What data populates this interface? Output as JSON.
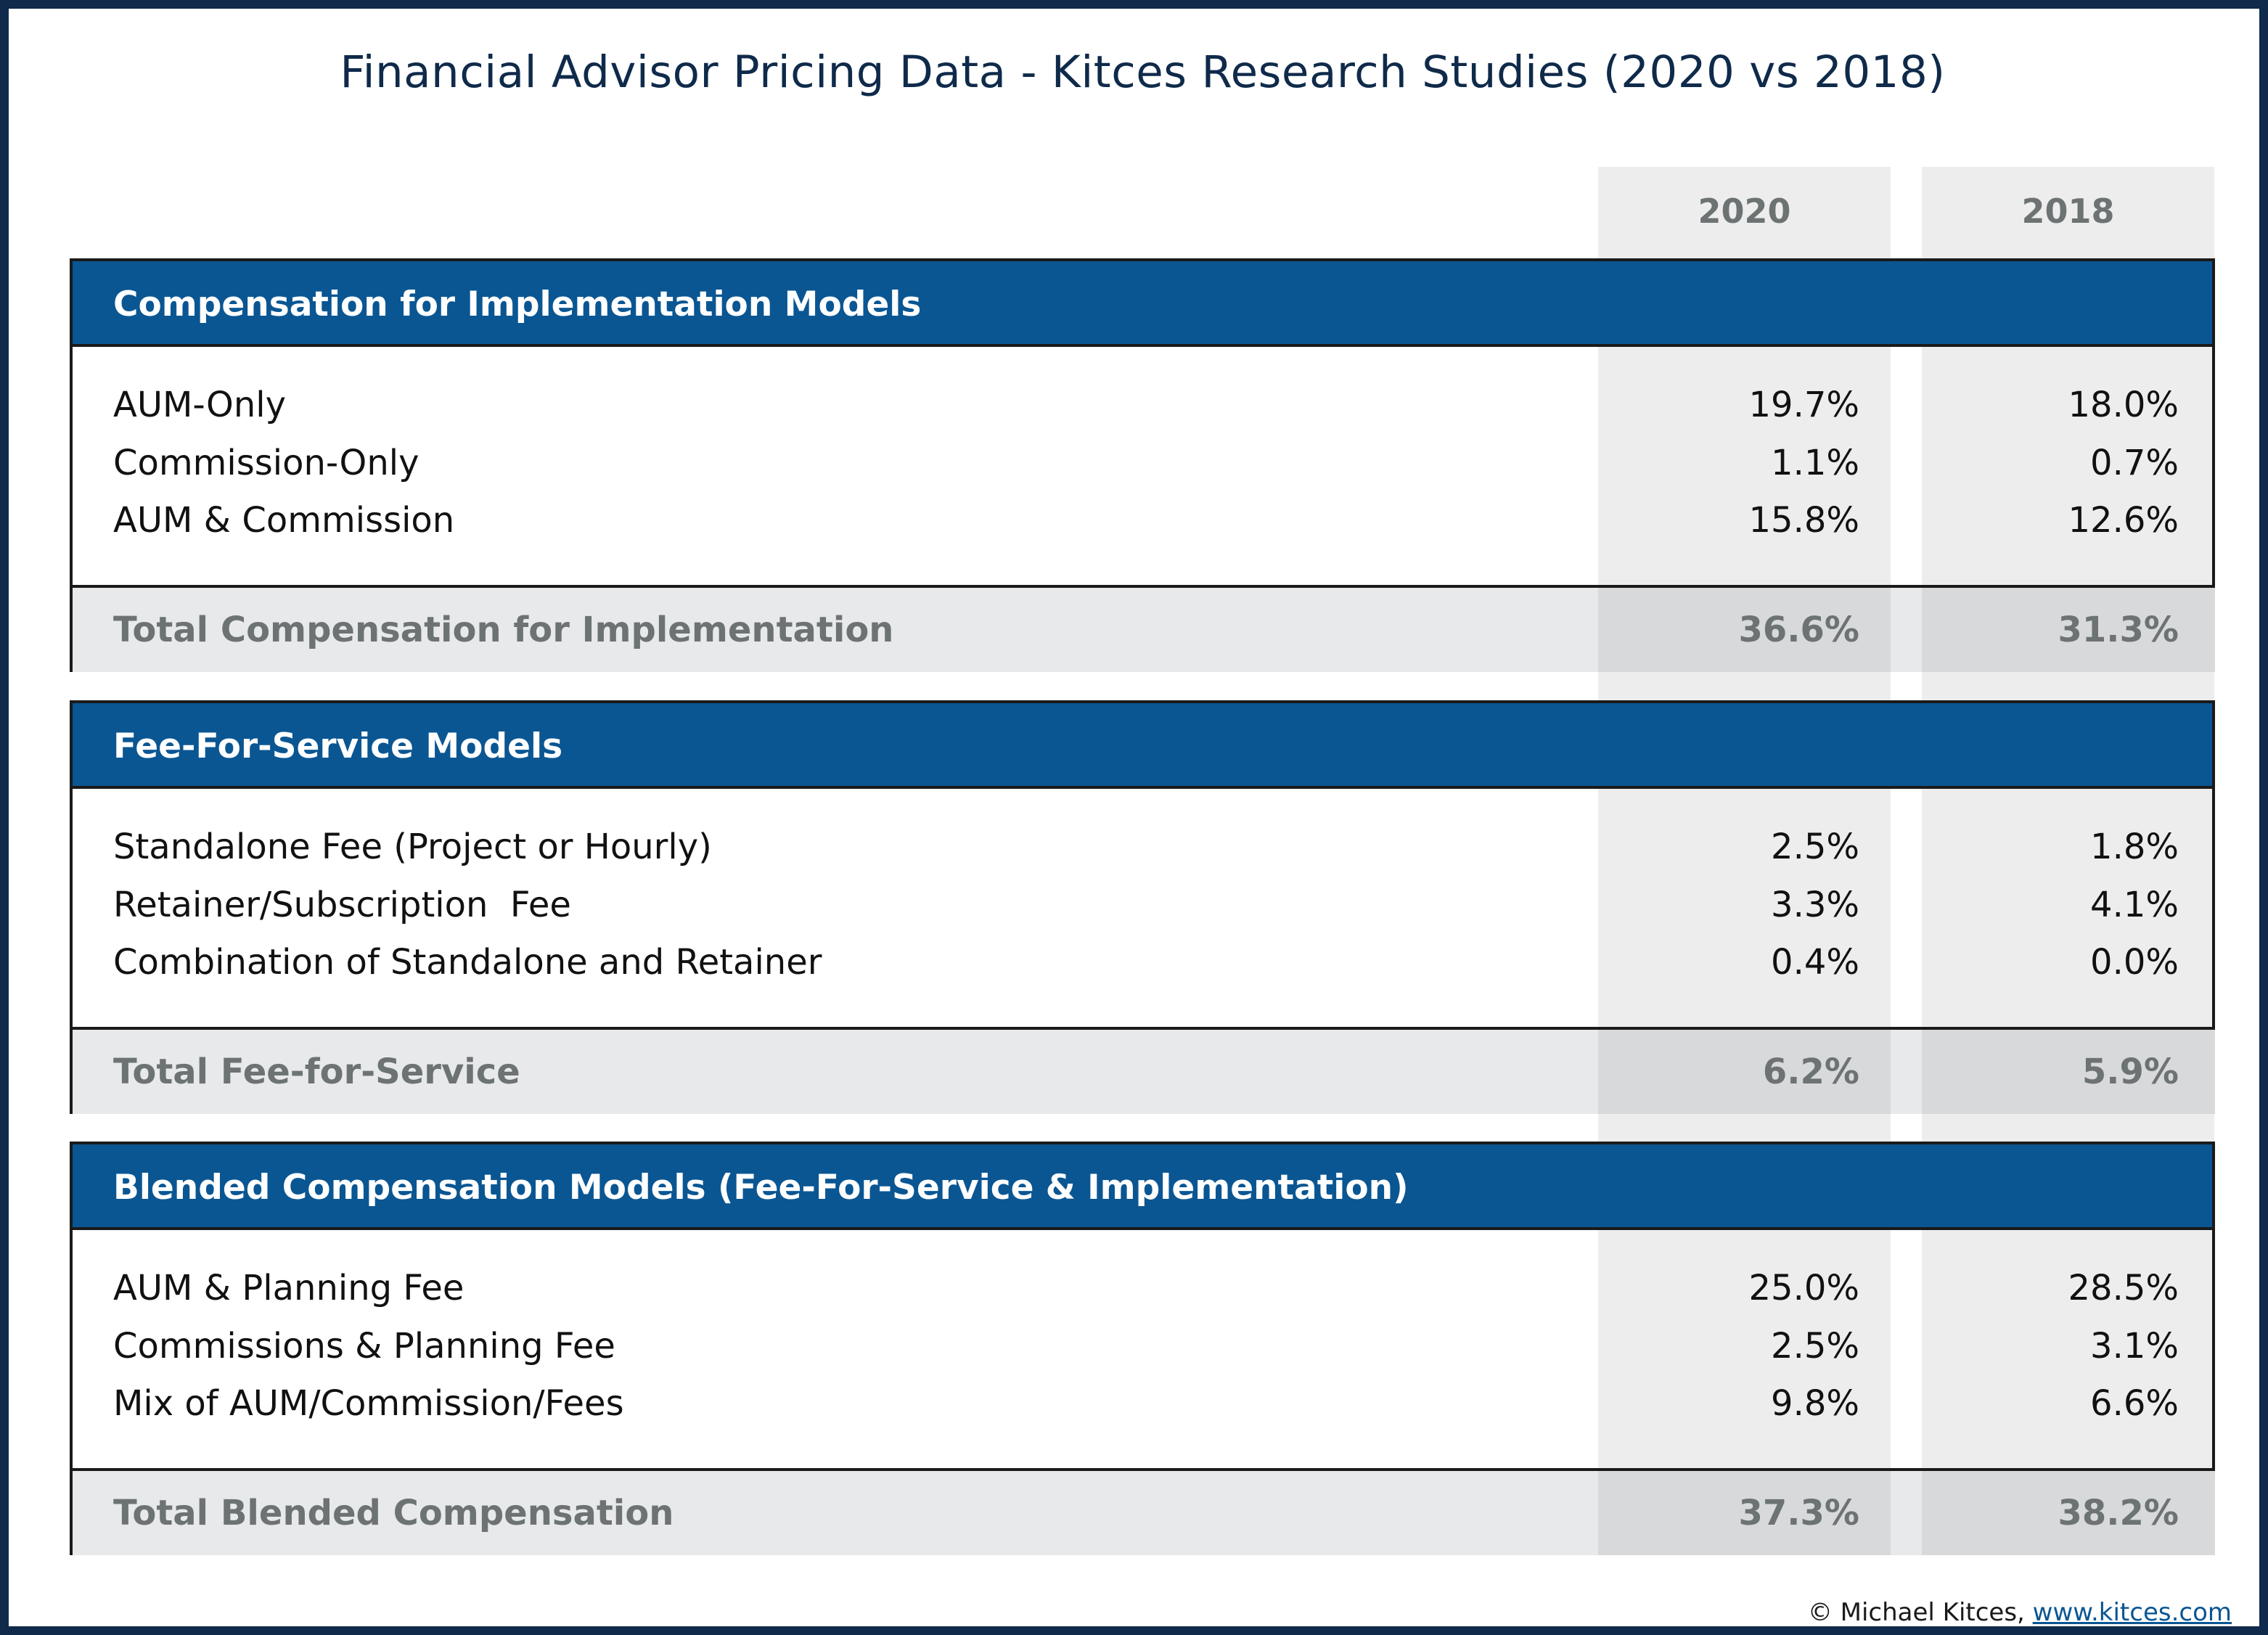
{
  "title": "Financial Advisor Pricing Data - Kitces Research Studies (2020 vs 2018)",
  "columns": [
    "2020",
    "2018"
  ],
  "credit": {
    "text": "© Michael Kitces, ",
    "link": "www.kitces.com"
  },
  "colors": {
    "header_blue": "#0a5693",
    "title_navy": "#0f2a4a",
    "total_text_gray": "#6d7373",
    "column_shade": "#ededee"
  },
  "sections": [
    {
      "header": "Compensation for Implementation Models",
      "rows": [
        {
          "label": "AUM-Only",
          "v2020": "19.7%",
          "v2018": "18.0%"
        },
        {
          "label": "Commission-Only",
          "v2020": "1.1%",
          "v2018": "0.7%"
        },
        {
          "label": "AUM & Commission",
          "v2020": "15.8%",
          "v2018": "12.6%"
        }
      ],
      "total": {
        "label": "Total Compensation for Implementation",
        "v2020": "36.6%",
        "v2018": "31.3%"
      }
    },
    {
      "header": "Fee-For-Service Models",
      "rows": [
        {
          "label": "Standalone Fee (Project or Hourly)",
          "v2020": "2.5%",
          "v2018": "1.8%"
        },
        {
          "label": "Retainer/Subscription  Fee",
          "v2020": "3.3%",
          "v2018": "4.1%"
        },
        {
          "label": "Combination of Standalone and Retainer",
          "v2020": "0.4%",
          "v2018": "0.0%"
        }
      ],
      "total": {
        "label": "Total Fee-for-Service",
        "v2020": "6.2%",
        "v2018": "5.9%"
      }
    },
    {
      "header": "Blended Compensation Models (Fee-For-Service & Implementation)",
      "rows": [
        {
          "label": "AUM & Planning Fee",
          "v2020": "25.0%",
          "v2018": "28.5%"
        },
        {
          "label": "Commissions & Planning Fee",
          "v2020": "2.5%",
          "v2018": "3.1%"
        },
        {
          "label": "Mix of AUM/Commission/Fees",
          "v2020": "9.8%",
          "v2018": "6.6%"
        }
      ],
      "total": {
        "label": "Total Blended Compensation",
        "v2020": "37.3%",
        "v2018": "38.2%"
      }
    }
  ],
  "chart_data": {
    "type": "table",
    "title": "Financial Advisor Pricing Data - Kitces Research Studies (2020 vs 2018)",
    "columns": [
      "2020",
      "2018"
    ],
    "rows": [
      {
        "section": "Compensation for Implementation Models",
        "label": "AUM-Only",
        "2020": 19.7,
        "2018": 18.0
      },
      {
        "section": "Compensation for Implementation Models",
        "label": "Commission-Only",
        "2020": 1.1,
        "2018": 0.7
      },
      {
        "section": "Compensation for Implementation Models",
        "label": "AUM & Commission",
        "2020": 15.8,
        "2018": 12.6
      },
      {
        "section": "Compensation for Implementation Models",
        "label": "Total Compensation for Implementation",
        "2020": 36.6,
        "2018": 31.3
      },
      {
        "section": "Fee-For-Service Models",
        "label": "Standalone Fee (Project or Hourly)",
        "2020": 2.5,
        "2018": 1.8
      },
      {
        "section": "Fee-For-Service Models",
        "label": "Retainer/Subscription  Fee",
        "2020": 3.3,
        "2018": 4.1
      },
      {
        "section": "Fee-For-Service Models",
        "label": "Combination of Standalone and Retainer",
        "2020": 0.4,
        "2018": 0.0
      },
      {
        "section": "Fee-For-Service Models",
        "label": "Total Fee-for-Service",
        "2020": 6.2,
        "2018": 5.9
      },
      {
        "section": "Blended Compensation Models (Fee-For-Service & Implementation)",
        "label": "AUM & Planning Fee",
        "2020": 25.0,
        "2018": 28.5
      },
      {
        "section": "Blended Compensation Models (Fee-For-Service & Implementation)",
        "label": "Commissions & Planning Fee",
        "2020": 2.5,
        "2018": 3.1
      },
      {
        "section": "Blended Compensation Models (Fee-For-Service & Implementation)",
        "label": "Mix of AUM/Commission/Fees",
        "2020": 9.8,
        "2018": 6.6
      },
      {
        "section": "Blended Compensation Models (Fee-For-Service & Implementation)",
        "label": "Total Blended Compensation",
        "2020": 37.3,
        "2018": 38.2
      }
    ]
  }
}
